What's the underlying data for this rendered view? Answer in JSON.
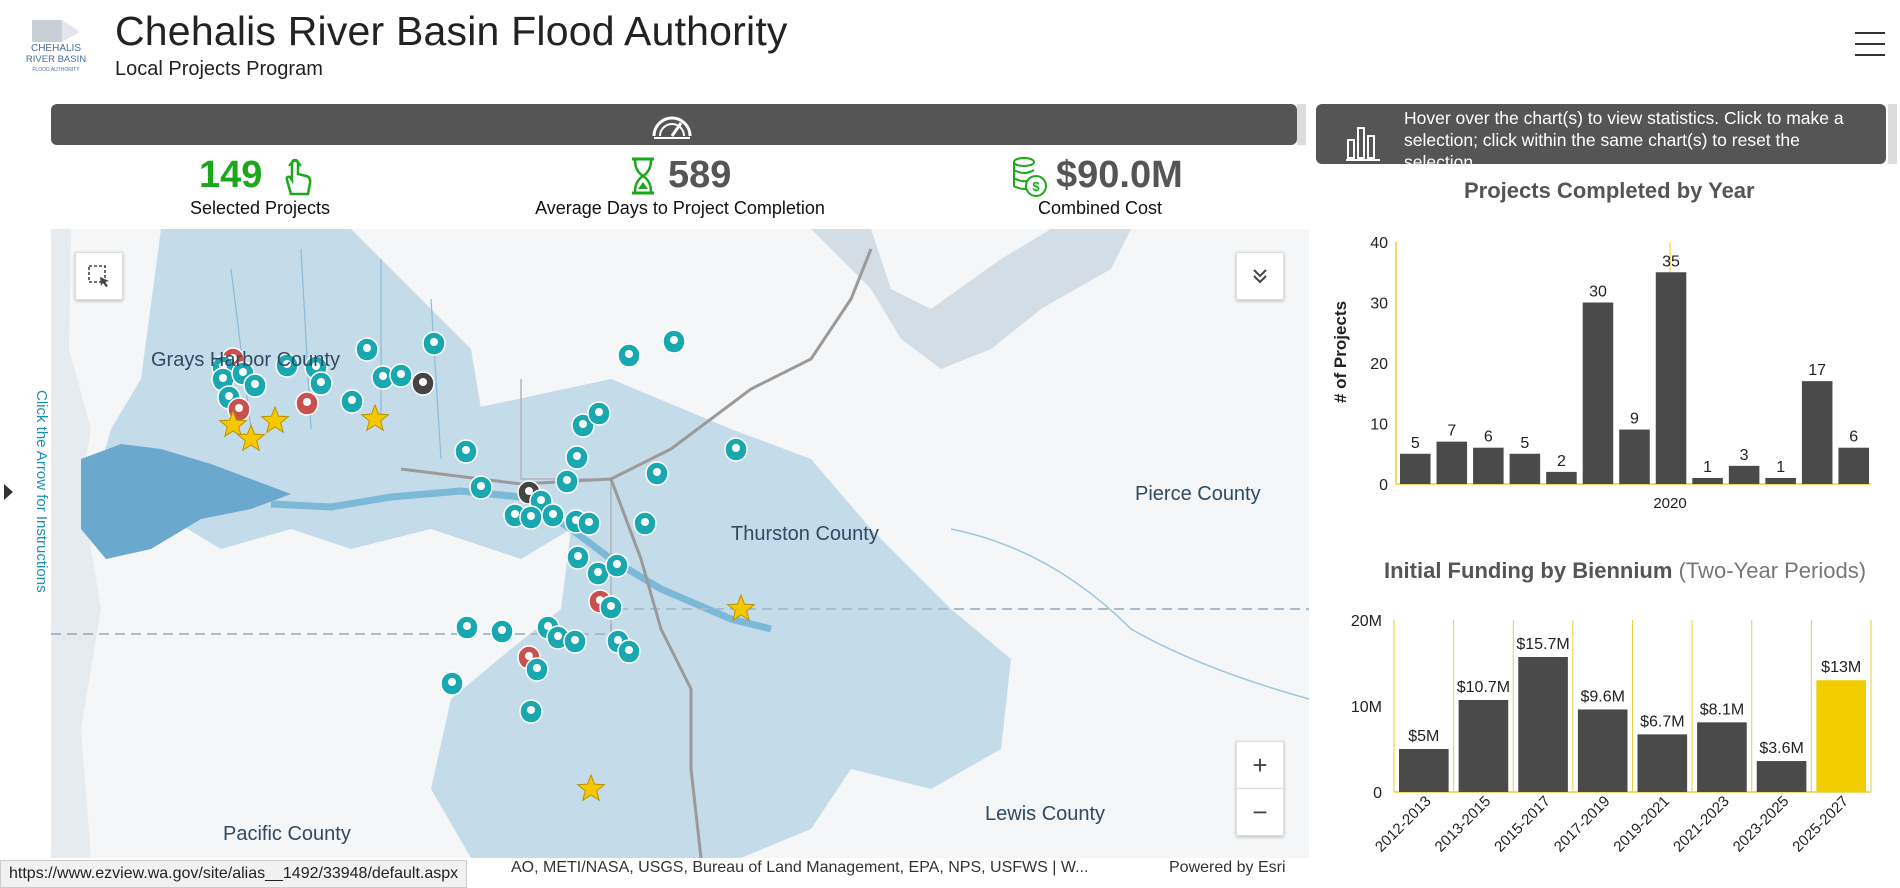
{
  "header": {
    "title": "Chehalis River Basin Flood Authority",
    "subtitle": "Local Projects Program",
    "logo_text": [
      "CHEHALIS",
      "RIVER BASIN",
      "FLOOD AUTHORITY"
    ]
  },
  "instructions_banner": "Hover over the chart(s) to view statistics. Click to make a selection; click within the same chart(s) to reset the selection.",
  "indicators": [
    {
      "value": "149",
      "label": "Selected Projects",
      "icon": "hand-pointer-icon",
      "color": "#1aa81a"
    },
    {
      "value": "589",
      "label": "Average Days to Project Completion",
      "icon": "hourglass-icon",
      "color": "#555555"
    },
    {
      "value": "$90.0M",
      "label": "Combined Cost",
      "icon": "coins-icon",
      "color": "#555555"
    }
  ],
  "map": {
    "labels": [
      "Grays Harbor County",
      "Thurston County",
      "Pierce County",
      "Pacific County",
      "Lewis County"
    ],
    "attribution": "AO, METI/NASA, USGS, Bureau of Land Management, EPA, NPS, USFWS | W...",
    "powered_by": "Powered by Esri",
    "zoom_in": "+",
    "zoom_out": "−",
    "side_tab": "Click the Arrow for Instructions"
  },
  "status_url": "https://www.ezview.wa.gov/site/alias__1492/33948/default.aspx",
  "colors": {
    "bar": "#4a4a4a",
    "highlight": "#f2cd00",
    "axis": "#e8cf3a",
    "green": "#1aa81a",
    "teal": "#1aa8b0",
    "red": "#c9504f"
  },
  "chart_data": [
    {
      "type": "bar",
      "title": "Projects Completed by Year",
      "ylabel": "# of Projects",
      "xtick_label": "2020",
      "ylim": [
        0,
        40
      ],
      "yticks": [
        "0",
        "10",
        "20",
        "30",
        "40"
      ],
      "values": [
        5,
        7,
        6,
        5,
        2,
        30,
        9,
        35,
        1,
        3,
        1,
        17,
        6
      ],
      "data_labels": [
        "5",
        "7",
        "6",
        "5",
        "2",
        "30",
        "9",
        "35",
        "1",
        "3",
        "1",
        "17",
        "6"
      ]
    },
    {
      "type": "bar",
      "title": "Initial Funding by Biennium",
      "subtitle": "(Two-Year Periods)",
      "ylim": [
        0,
        20
      ],
      "yticks": [
        "0",
        "10M",
        "20M"
      ],
      "categories": [
        "2012-2013",
        "2013-2015",
        "2015-2017",
        "2017-2019",
        "2019-2021",
        "2021-2023",
        "2023-2025",
        "2025-2027"
      ],
      "values": [
        5,
        10.7,
        15.7,
        9.6,
        6.7,
        8.1,
        3.6,
        13
      ],
      "data_labels": [
        "$5M",
        "$10.7M",
        "$15.7M",
        "$9.6M",
        "$6.7M",
        "$8.1M",
        "$3.6M",
        "$13M"
      ],
      "highlight_index": 7
    }
  ]
}
